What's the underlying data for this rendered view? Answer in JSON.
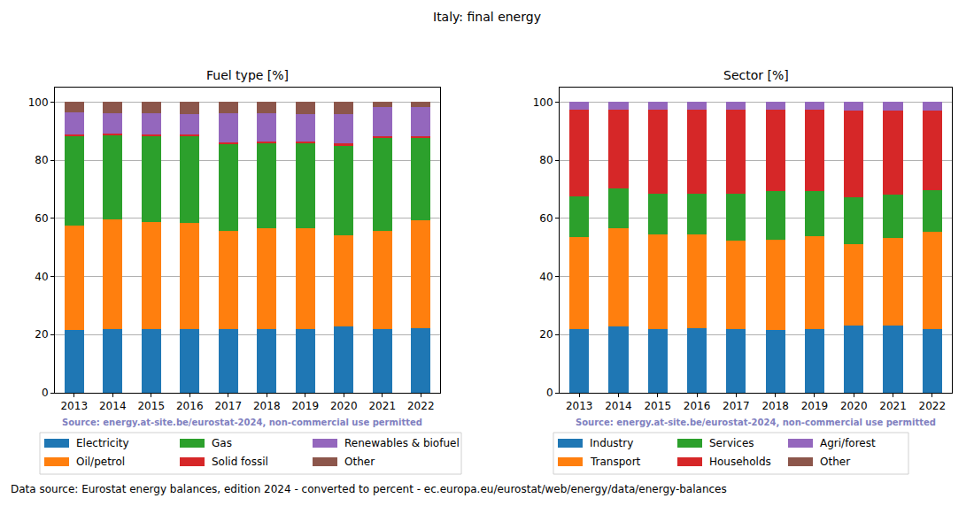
{
  "title": "Italy: final energy",
  "caption": "Data source: Eurostat energy balances, edition 2024 - converted to percent - ec.europa.eu/eurostat/web/energy/data/energy-balances",
  "chart_data": [
    {
      "type": "bar",
      "title": "Fuel type [%]",
      "stacked": true,
      "grid": true,
      "annotations": [
        "Source: energy.at-site.be/eurostat-2024, non-commercial use permitted"
      ],
      "categories": [
        "2013",
        "2014",
        "2015",
        "2016",
        "2017",
        "2018",
        "2019",
        "2020",
        "2021",
        "2022"
      ],
      "ylim": [
        0,
        105
      ],
      "yticks": [
        0,
        20,
        40,
        60,
        80,
        100
      ],
      "series": [
        {
          "name": "Electricity",
          "color": "#1f77b4",
          "values": [
            21.5,
            22,
            21.8,
            21.8,
            22,
            21.8,
            22,
            22.7,
            21.8,
            22.2
          ]
        },
        {
          "name": "Oil/petrol",
          "color": "#ff7f0e",
          "values": [
            36,
            37.8,
            36.9,
            36.5,
            33.7,
            34.7,
            34.5,
            31.5,
            33.9,
            37.3
          ]
        },
        {
          "name": "Gas",
          "color": "#2ca02c",
          "values": [
            30.8,
            28.7,
            29.6,
            30.0,
            29.8,
            29.2,
            29.3,
            31.0,
            32.1,
            28.3
          ]
        },
        {
          "name": "Solid fossil",
          "color": "#d62728",
          "values": [
            0.7,
            0.7,
            0.5,
            0.6,
            0.7,
            0.7,
            0.7,
            0.5,
            0.4,
            0.4
          ]
        },
        {
          "name": "Renewables & biofuel",
          "color": "#9467bd",
          "values": [
            7.5,
            7.0,
            7.4,
            6.9,
            10.0,
            9.8,
            9.3,
            10.2,
            10.0,
            10.1
          ]
        },
        {
          "name": "Other",
          "color": "#8c564b",
          "values": [
            3.5,
            3.8,
            3.8,
            4.2,
            3.8,
            3.8,
            4.2,
            4.1,
            1.8,
            1.7
          ]
        }
      ]
    },
    {
      "type": "bar",
      "title": "Sector [%]",
      "stacked": true,
      "grid": true,
      "annotations": [
        "Source: energy.at-site.be/eurostat-2024, non-commercial use permitted"
      ],
      "categories": [
        "2013",
        "2014",
        "2015",
        "2016",
        "2017",
        "2018",
        "2019",
        "2020",
        "2021",
        "2022"
      ],
      "ylim": [
        0,
        105
      ],
      "yticks": [
        0,
        20,
        40,
        60,
        80,
        100
      ],
      "series": [
        {
          "name": "Industry",
          "color": "#1f77b4",
          "values": [
            22,
            22.7,
            22,
            22.3,
            21.8,
            21.5,
            21.8,
            23,
            23,
            22
          ]
        },
        {
          "name": "Transport",
          "color": "#ff7f0e",
          "values": [
            31.5,
            33.8,
            32.5,
            32.2,
            30.5,
            31.2,
            32.0,
            28.2,
            30.3,
            33.3
          ]
        },
        {
          "name": "Services",
          "color": "#2ca02c",
          "values": [
            14,
            13.7,
            14,
            14,
            16.2,
            16.6,
            15.7,
            16.1,
            14.9,
            14.5
          ]
        },
        {
          "name": "Households",
          "color": "#d62728",
          "values": [
            29.8,
            27.1,
            28.8,
            28.8,
            28.8,
            28.0,
            27.8,
            29.7,
            28.8,
            27.2
          ]
        },
        {
          "name": "Agri/forest",
          "color": "#9467bd",
          "values": [
            2.7,
            2.7,
            2.7,
            2.7,
            2.7,
            2.7,
            2.7,
            3.0,
            3.0,
            3.0
          ]
        },
        {
          "name": "Other",
          "color": "#8c564b",
          "values": [
            0,
            0,
            0,
            0,
            0,
            0,
            0,
            0,
            0,
            0
          ]
        }
      ]
    }
  ]
}
